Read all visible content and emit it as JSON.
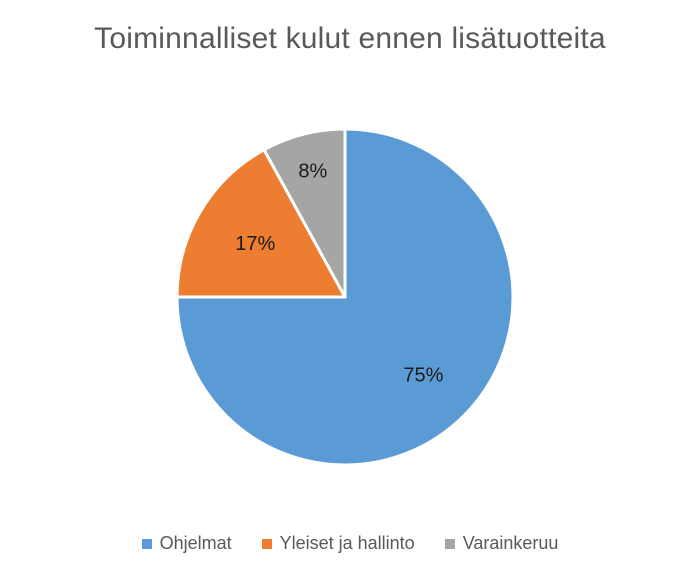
{
  "chart_data": {
    "type": "pie",
    "title": "Toiminnalliset kulut ennen lisätuotteita",
    "slices": [
      {
        "name": "Ohjelmat",
        "value": 75,
        "label": "75%",
        "color": "#5b9bd5"
      },
      {
        "name": "Yleiset ja hallinto",
        "value": 17,
        "label": "17%",
        "color": "#ed7d31"
      },
      {
        "name": "Varainkeruu",
        "value": 8,
        "label": "8%",
        "color": "#a5a5a5"
      }
    ],
    "legend_position": "bottom"
  }
}
